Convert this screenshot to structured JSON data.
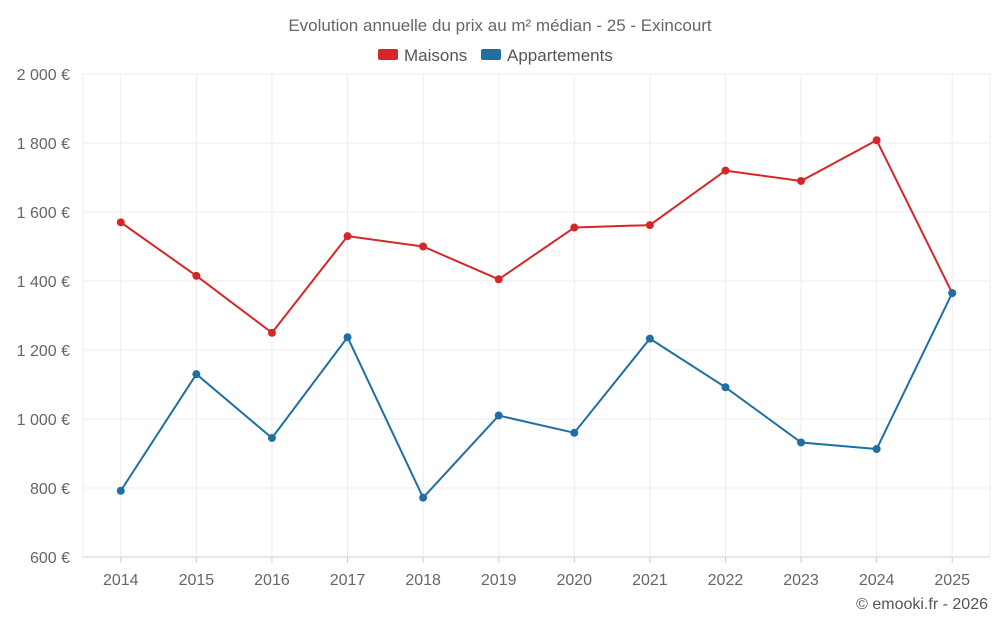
{
  "chart_data": {
    "type": "line",
    "title": "Evolution annuelle du prix au m² médian - 25 - Exincourt",
    "xlabel": "",
    "ylabel": "",
    "categories": [
      "2014",
      "2015",
      "2016",
      "2017",
      "2018",
      "2019",
      "2020",
      "2021",
      "2022",
      "2023",
      "2024",
      "2025"
    ],
    "ylim": [
      600,
      2000
    ],
    "yticks": [
      600,
      800,
      1000,
      1200,
      1400,
      1600,
      1800,
      2000
    ],
    "ytick_labels": [
      "600 €",
      "800 €",
      "1 000 €",
      "1 200 €",
      "1 400 €",
      "1 600 €",
      "1 800 €",
      "2 000 €"
    ],
    "grid": true,
    "legend_position": "top-center",
    "series": [
      {
        "name": "Maisons",
        "color": "#d62728",
        "values": [
          1570,
          1415,
          1250,
          1530,
          1500,
          1405,
          1555,
          1562,
          1720,
          1690,
          1808,
          1365
        ]
      },
      {
        "name": "Appartements",
        "color": "#1f6fa5",
        "values": [
          792,
          1130,
          945,
          1237,
          772,
          1010,
          960,
          1233,
          1092,
          932,
          913,
          1365
        ]
      }
    ]
  },
  "credit": "© emooki.fr - 2026"
}
